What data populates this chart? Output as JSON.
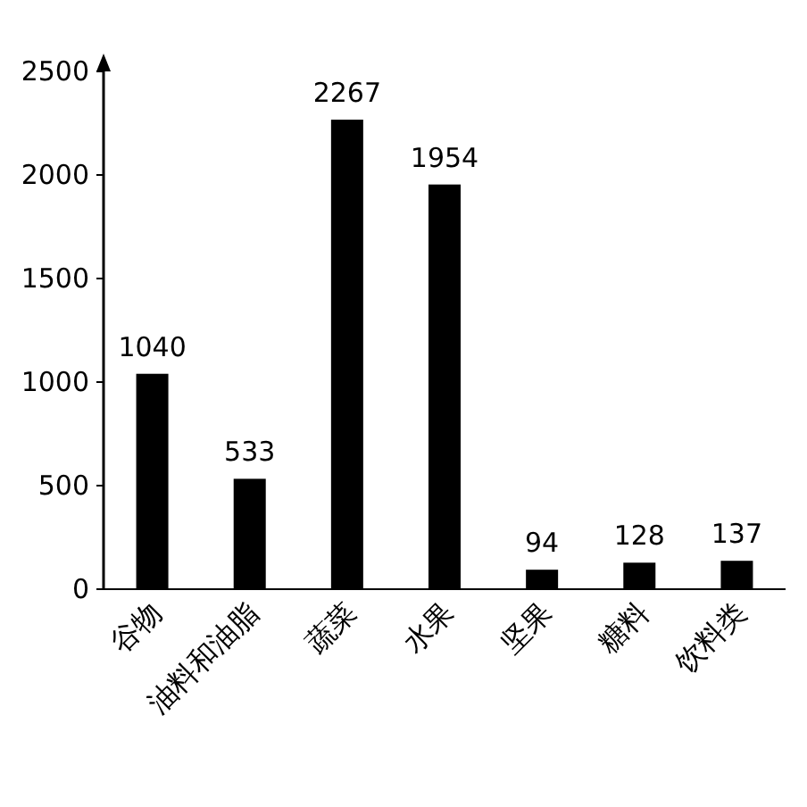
{
  "chart_data": {
    "type": "bar",
    "categories": [
      "谷物",
      "油料和油脂",
      "蔬菜",
      "水果",
      "坚果",
      "糖料",
      "饮料类"
    ],
    "values": [
      1040,
      533,
      2267,
      1954,
      94,
      128,
      137
    ],
    "color": "#000000",
    "ylim": [
      0,
      2500
    ],
    "yticks": [
      0,
      500,
      1000,
      1500,
      2000,
      2500
    ],
    "data_labels": true,
    "grid": false
  }
}
